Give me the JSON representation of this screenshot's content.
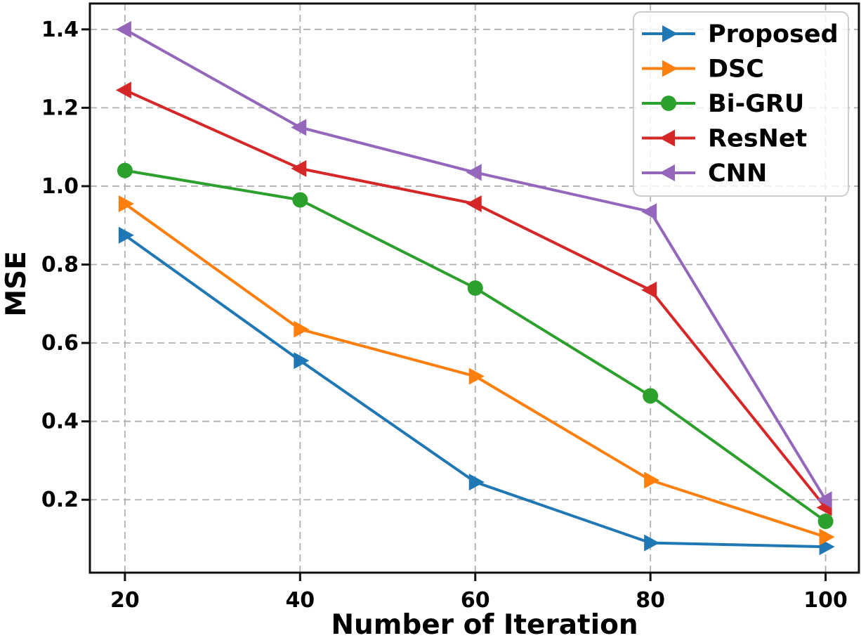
{
  "chart_data": {
    "type": "line",
    "title": "",
    "xlabel": "Number of Iteration",
    "ylabel": "MSE",
    "x": [
      20,
      40,
      60,
      80,
      100
    ],
    "x_ticks": [
      20,
      40,
      60,
      80,
      100
    ],
    "x_tick_labels": [
      "20",
      "40",
      "60",
      "80",
      "100"
    ],
    "y_ticks": [
      0.2,
      0.4,
      0.6,
      0.8,
      1.0,
      1.2,
      1.4
    ],
    "y_tick_labels": [
      "0.2",
      "0.4",
      "0.6",
      "0.8",
      "1.0",
      "1.2",
      "1.4"
    ],
    "xlim": [
      16,
      103.8
    ],
    "ylim": [
      0.014,
      1.466
    ],
    "grid": true,
    "grid_style": "dashed",
    "grid_color": "#b0b0b0",
    "frame_color": "#111111",
    "legend_position": "upper right",
    "series": [
      {
        "name": "Proposed",
        "color": "#1f77b4",
        "marker": "triangle-right",
        "values": [
          0.875,
          0.555,
          0.245,
          0.09,
          0.08
        ]
      },
      {
        "name": "DSC",
        "color": "#ff7f0e",
        "marker": "triangle-right",
        "values": [
          0.955,
          0.635,
          0.515,
          0.25,
          0.105
        ]
      },
      {
        "name": "Bi-GRU",
        "color": "#2ca02c",
        "marker": "circle",
        "values": [
          1.04,
          0.965,
          0.74,
          0.465,
          0.145
        ]
      },
      {
        "name": "ResNet",
        "color": "#d62728",
        "marker": "triangle-left",
        "values": [
          1.245,
          1.045,
          0.955,
          0.735,
          0.18
        ]
      },
      {
        "name": "CNN",
        "color": "#9467bd",
        "marker": "triangle-left",
        "values": [
          1.4,
          1.15,
          1.035,
          0.935,
          0.2
        ]
      }
    ]
  }
}
